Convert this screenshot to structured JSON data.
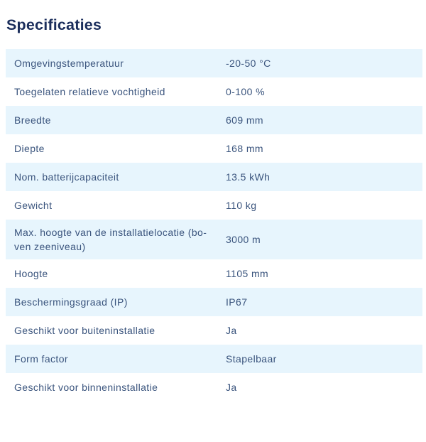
{
  "page": {
    "title": "Specificaties"
  },
  "colors": {
    "title_text": "#1b2e5c",
    "row_text": "#3a547d",
    "row_alt_background": "#e7f5fd",
    "row_background": "#ffffff"
  },
  "table": {
    "rows": [
      {
        "label": "Omgevingstemperatuur",
        "value": "-20-50 °C",
        "tall": false
      },
      {
        "label": "Toegelaten relatieve vochtigheid",
        "value": "0-100 %",
        "tall": false
      },
      {
        "label": "Breedte",
        "value": "609 mm",
        "tall": false
      },
      {
        "label": "Diepte",
        "value": "168 mm",
        "tall": false
      },
      {
        "label": "Nom. batterijcapaciteit",
        "value": "13.5 kWh",
        "tall": false
      },
      {
        "label": "Gewicht",
        "value": "110 kg",
        "tall": false
      },
      {
        "label": "Max. hoogte van de installatielocatie (bo-\nven zeeniveau)",
        "value": "3000 m",
        "tall": true
      },
      {
        "label": "Hoogte",
        "value": "1105 mm",
        "tall": false
      },
      {
        "label": "Beschermingsgraad (IP)",
        "value": "IP67",
        "tall": false
      },
      {
        "label": "Geschikt voor buiteninstallatie",
        "value": "Ja",
        "tall": false
      },
      {
        "label": "Form factor",
        "value": "Stapelbaar",
        "tall": false
      },
      {
        "label": "Geschikt voor binneninstallatie",
        "value": "Ja",
        "tall": false
      }
    ]
  }
}
